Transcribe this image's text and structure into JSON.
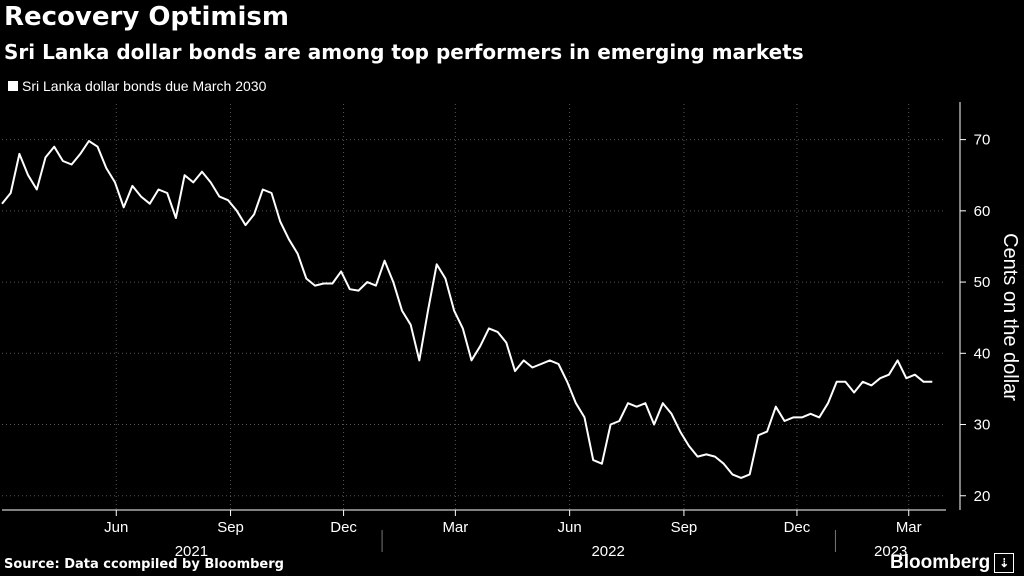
{
  "title": "Recovery Optimism",
  "subtitle": "Sri Lanka dollar bonds are among top performers in emerging markets",
  "source": "Source: Data ccompiled by Bloomberg",
  "brand": "Bloomberg",
  "colors": {
    "background": "#000000",
    "line": "#ffffff",
    "grid": "#555555"
  },
  "chart_data": {
    "type": "line",
    "title": "Recovery Optimism",
    "subtitle": "Sri Lanka dollar bonds are among top performers in emerging markets",
    "ylabel": "Cents on the dollar",
    "ylim": [
      18,
      75
    ],
    "y_ticks": [
      20,
      30,
      40,
      50,
      60,
      70
    ],
    "x_range": [
      "2021-03-01",
      "2023-03-31"
    ],
    "x_ticks": [
      {
        "label": "Jun",
        "date": "2021-06-01"
      },
      {
        "label": "Sep",
        "date": "2021-09-01"
      },
      {
        "label": "Dec",
        "date": "2021-12-01"
      },
      {
        "label": "Mar",
        "date": "2022-03-01"
      },
      {
        "label": "Jun",
        "date": "2022-06-01"
      },
      {
        "label": "Sep",
        "date": "2022-09-01"
      },
      {
        "label": "Dec",
        "date": "2022-12-01"
      },
      {
        "label": "Mar",
        "date": "2023-03-01"
      }
    ],
    "year_labels": [
      {
        "label": "2021",
        "from": "2021-03-01",
        "to": "2021-12-31"
      },
      {
        "label": "2022",
        "from": "2022-01-01",
        "to": "2022-12-31"
      },
      {
        "label": "2023",
        "from": "2023-01-01",
        "to": "2023-03-31"
      }
    ],
    "grid": true,
    "legend_position": "top-left",
    "series": [
      {
        "name": "Sri Lanka dollar bonds due March 2030",
        "points": [
          [
            "2021-03-01",
            61.0
          ],
          [
            "2021-03-08",
            62.5
          ],
          [
            "2021-03-15",
            68.0
          ],
          [
            "2021-03-22",
            65.0
          ],
          [
            "2021-03-29",
            63.0
          ],
          [
            "2021-04-05",
            67.5
          ],
          [
            "2021-04-12",
            69.0
          ],
          [
            "2021-04-19",
            67.0
          ],
          [
            "2021-04-26",
            66.5
          ],
          [
            "2021-05-03",
            68.0
          ],
          [
            "2021-05-10",
            69.8
          ],
          [
            "2021-05-17",
            69.0
          ],
          [
            "2021-05-24",
            66.0
          ],
          [
            "2021-05-31",
            64.0
          ],
          [
            "2021-06-07",
            60.5
          ],
          [
            "2021-06-14",
            63.5
          ],
          [
            "2021-06-21",
            62.0
          ],
          [
            "2021-06-28",
            61.0
          ],
          [
            "2021-07-05",
            63.0
          ],
          [
            "2021-07-12",
            62.5
          ],
          [
            "2021-07-19",
            59.0
          ],
          [
            "2021-07-26",
            65.0
          ],
          [
            "2021-08-02",
            64.0
          ],
          [
            "2021-08-09",
            65.5
          ],
          [
            "2021-08-16",
            64.0
          ],
          [
            "2021-08-23",
            62.0
          ],
          [
            "2021-08-30",
            61.5
          ],
          [
            "2021-09-06",
            60.0
          ],
          [
            "2021-09-13",
            58.0
          ],
          [
            "2021-09-20",
            59.5
          ],
          [
            "2021-09-27",
            63.0
          ],
          [
            "2021-10-04",
            62.5
          ],
          [
            "2021-10-11",
            58.5
          ],
          [
            "2021-10-18",
            56.0
          ],
          [
            "2021-10-25",
            54.0
          ],
          [
            "2021-11-01",
            50.5
          ],
          [
            "2021-11-08",
            49.5
          ],
          [
            "2021-11-15",
            49.8
          ],
          [
            "2021-11-22",
            49.8
          ],
          [
            "2021-11-29",
            51.5
          ],
          [
            "2021-12-06",
            49.0
          ],
          [
            "2021-12-13",
            48.8
          ],
          [
            "2021-12-20",
            50.0
          ],
          [
            "2021-12-27",
            49.5
          ],
          [
            "2022-01-03",
            53.0
          ],
          [
            "2022-01-10",
            50.0
          ],
          [
            "2022-01-17",
            46.0
          ],
          [
            "2022-01-24",
            44.0
          ],
          [
            "2022-01-31",
            39.0
          ],
          [
            "2022-02-07",
            46.0
          ],
          [
            "2022-02-14",
            52.5
          ],
          [
            "2022-02-21",
            50.5
          ],
          [
            "2022-02-28",
            46.0
          ],
          [
            "2022-03-07",
            43.5
          ],
          [
            "2022-03-14",
            39.0
          ],
          [
            "2022-03-21",
            41.0
          ],
          [
            "2022-03-28",
            43.5
          ],
          [
            "2022-04-04",
            43.0
          ],
          [
            "2022-04-11",
            41.5
          ],
          [
            "2022-04-18",
            37.5
          ],
          [
            "2022-04-25",
            39.0
          ],
          [
            "2022-05-02",
            38.0
          ],
          [
            "2022-05-09",
            38.5
          ],
          [
            "2022-05-16",
            39.0
          ],
          [
            "2022-05-23",
            38.5
          ],
          [
            "2022-05-30",
            36.0
          ],
          [
            "2022-06-06",
            33.0
          ],
          [
            "2022-06-13",
            31.0
          ],
          [
            "2022-06-20",
            25.0
          ],
          [
            "2022-06-27",
            24.5
          ],
          [
            "2022-07-04",
            30.0
          ],
          [
            "2022-07-11",
            30.5
          ],
          [
            "2022-07-18",
            33.0
          ],
          [
            "2022-07-25",
            32.5
          ],
          [
            "2022-08-01",
            33.0
          ],
          [
            "2022-08-08",
            30.0
          ],
          [
            "2022-08-15",
            33.0
          ],
          [
            "2022-08-22",
            31.5
          ],
          [
            "2022-08-29",
            29.0
          ],
          [
            "2022-09-05",
            27.0
          ],
          [
            "2022-09-12",
            25.5
          ],
          [
            "2022-09-19",
            25.8
          ],
          [
            "2022-09-26",
            25.5
          ],
          [
            "2022-10-03",
            24.5
          ],
          [
            "2022-10-10",
            23.0
          ],
          [
            "2022-10-17",
            22.5
          ],
          [
            "2022-10-24",
            23.0
          ],
          [
            "2022-10-31",
            28.5
          ],
          [
            "2022-11-07",
            29.0
          ],
          [
            "2022-11-14",
            32.5
          ],
          [
            "2022-11-21",
            30.5
          ],
          [
            "2022-11-28",
            31.0
          ],
          [
            "2022-12-05",
            31.0
          ],
          [
            "2022-12-12",
            31.5
          ],
          [
            "2022-12-19",
            31.0
          ],
          [
            "2022-12-26",
            33.0
          ],
          [
            "2023-01-02",
            36.0
          ],
          [
            "2023-01-09",
            36.0
          ],
          [
            "2023-01-16",
            34.5
          ],
          [
            "2023-01-23",
            36.0
          ],
          [
            "2023-01-30",
            35.5
          ],
          [
            "2023-02-06",
            36.5
          ],
          [
            "2023-02-13",
            37.0
          ],
          [
            "2023-02-20",
            39.0
          ],
          [
            "2023-02-27",
            36.5
          ],
          [
            "2023-03-06",
            37.0
          ],
          [
            "2023-03-13",
            36.0
          ],
          [
            "2023-03-20",
            36.0
          ]
        ]
      }
    ]
  }
}
